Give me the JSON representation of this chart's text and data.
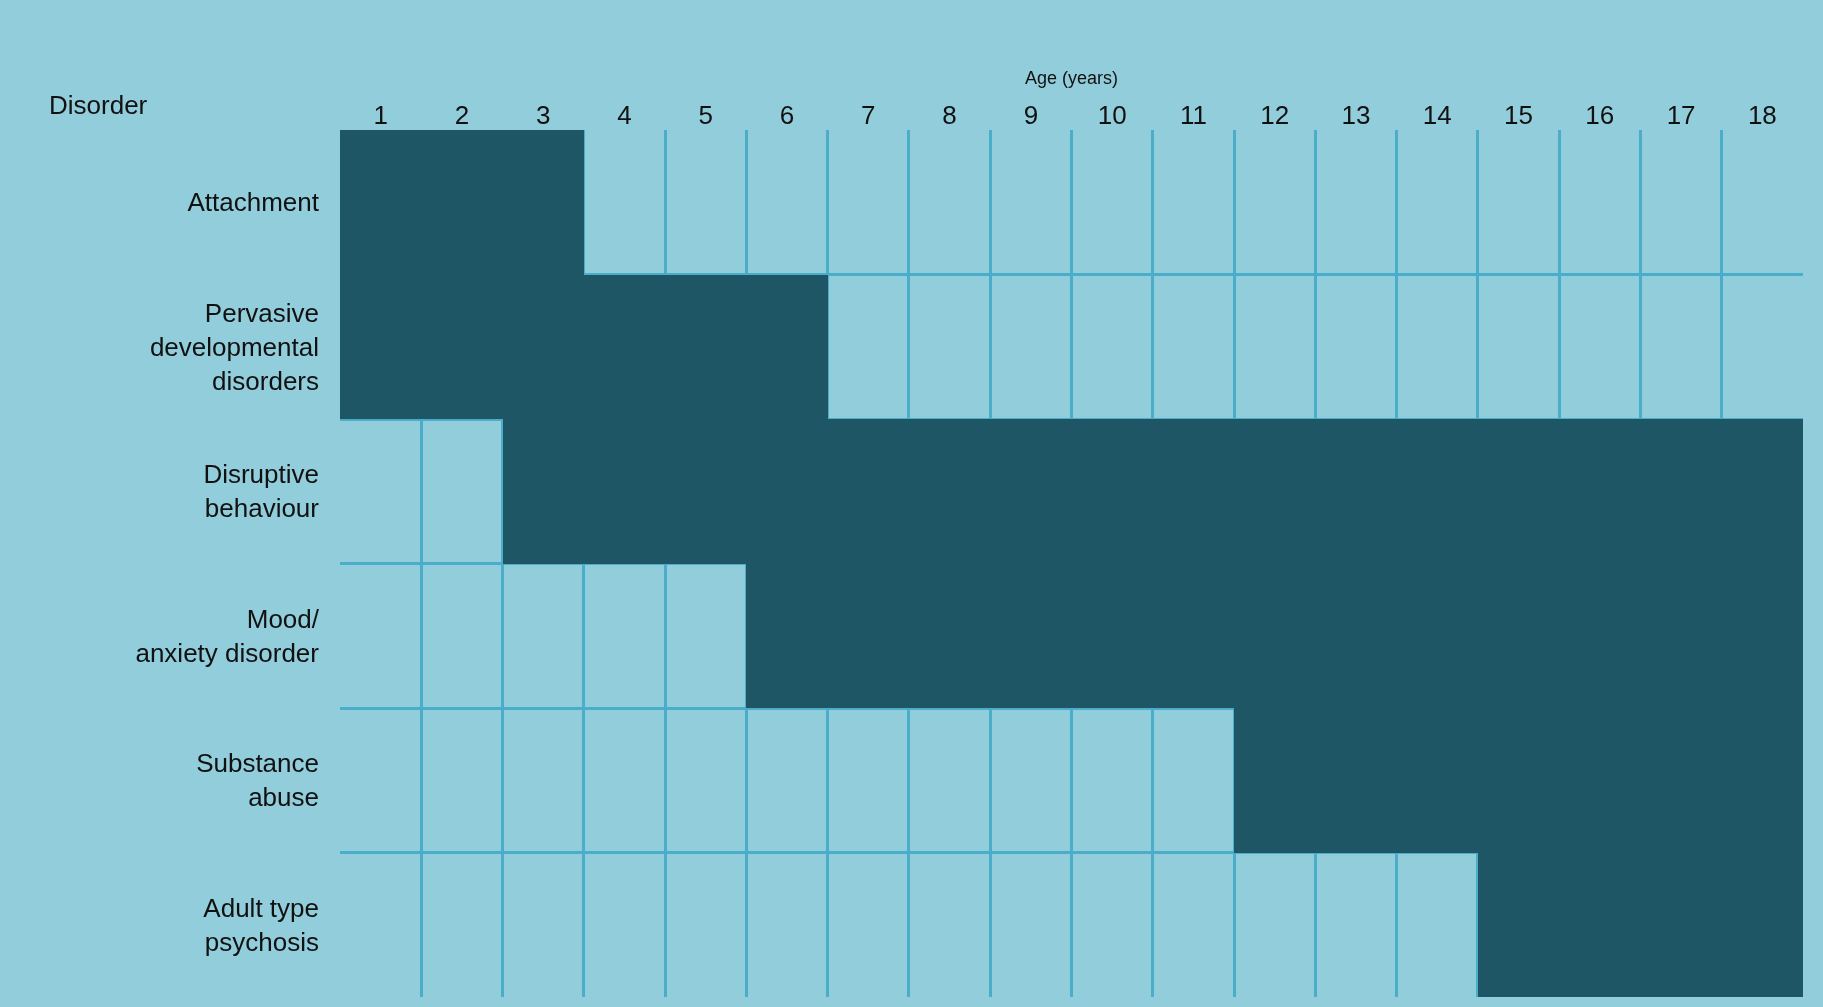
{
  "chart_data": {
    "type": "bar",
    "orientation": "horizontal",
    "xlabel": "Age (years)",
    "ylabel": "Disorder",
    "categories": [
      "Attachment",
      "Pervasive\ndevelopmental\ndisorders",
      "Disruptive\nbehaviour",
      "Mood/\nanxiety disorder",
      "Substance\nabuse",
      "Adult type\npsychosis"
    ],
    "base": [
      0,
      0,
      2,
      5,
      11,
      14
    ],
    "values": [
      3,
      6,
      16,
      13,
      7,
      4
    ],
    "color": "#1f5665",
    "xlim": [
      0,
      18
    ],
    "xticks": [
      {
        "value": 0.5,
        "label": "1"
      },
      {
        "value": 1.5,
        "label": "2"
      },
      {
        "value": 2.5,
        "label": "3"
      },
      {
        "value": 3.5,
        "label": "4"
      },
      {
        "value": 4.5,
        "label": "5"
      },
      {
        "value": 5.5,
        "label": "6"
      },
      {
        "value": 6.5,
        "label": "7"
      },
      {
        "value": 7.5,
        "label": "8"
      },
      {
        "value": 8.5,
        "label": "9"
      },
      {
        "value": 9.5,
        "label": "10"
      },
      {
        "value": 10.5,
        "label": "11"
      },
      {
        "value": 11.5,
        "label": "12"
      },
      {
        "value": 12.5,
        "label": "13"
      },
      {
        "value": 13.5,
        "label": "14"
      },
      {
        "value": 14.5,
        "label": "15"
      },
      {
        "value": 15.5,
        "label": "16"
      },
      {
        "value": 16.5,
        "label": "17"
      },
      {
        "value": 17.5,
        "label": "18"
      }
    ],
    "grid": true
  }
}
